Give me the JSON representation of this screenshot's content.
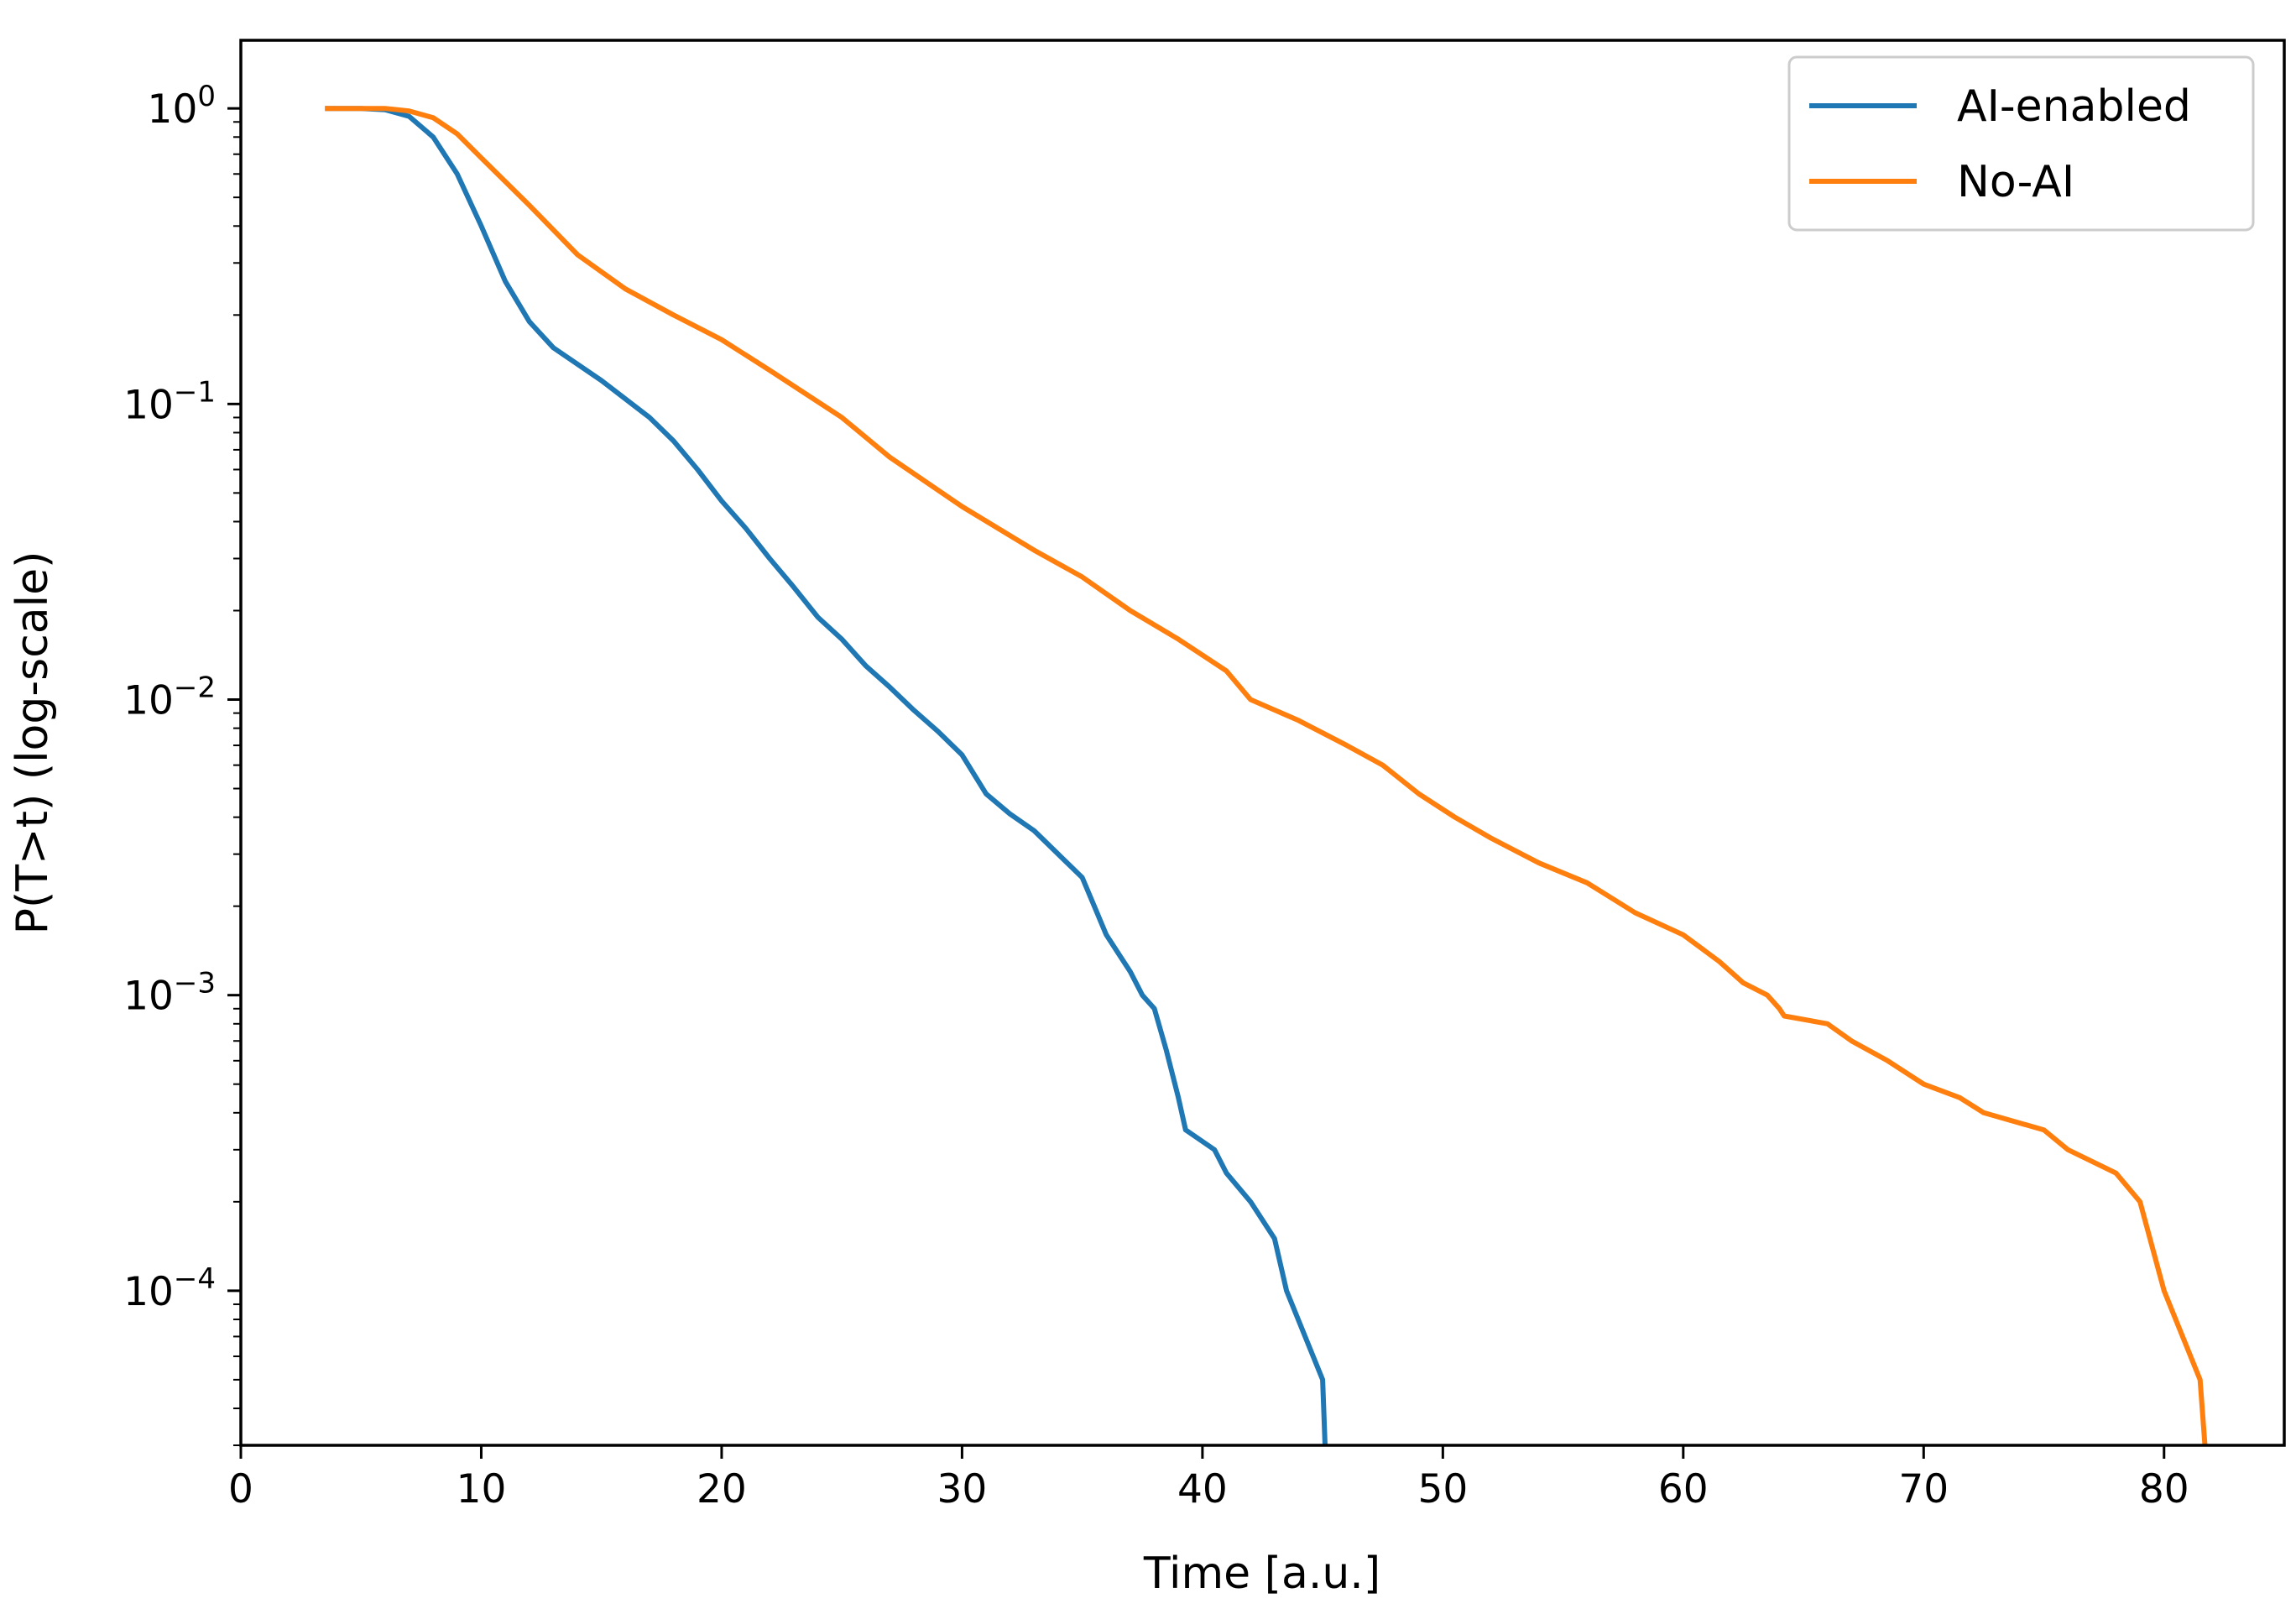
{
  "chart_data": {
    "type": "line",
    "title": "",
    "xlabel": "Time [a.u.]",
    "ylabel": "P(T>t) (log-scale)",
    "xlim": [
      0,
      85
    ],
    "ylim": [
      3e-05,
      1.7
    ],
    "yscale": "log",
    "grid": false,
    "legend_position": "top-right",
    "x_ticks": [
      0,
      10,
      20,
      30,
      40,
      50,
      60,
      70,
      80
    ],
    "x_tick_labels": [
      "0",
      "10",
      "20",
      "30",
      "40",
      "50",
      "60",
      "70",
      "80"
    ],
    "y_ticks": [
      1,
      0.1,
      0.01,
      0.001,
      0.0001
    ],
    "y_tick_labels": [
      {
        "base": "10",
        "exp": "0"
      },
      {
        "base": "10",
        "exp": "−1"
      },
      {
        "base": "10",
        "exp": "−2"
      },
      {
        "base": "10",
        "exp": "−3"
      },
      {
        "base": "10",
        "exp": "−4"
      }
    ],
    "series": [
      {
        "name": "AI-enabled",
        "color": "#1f77b4",
        "points": [
          [
            3.5,
            1.0
          ],
          [
            5,
            1.0
          ],
          [
            6,
            0.99
          ],
          [
            7,
            0.94
          ],
          [
            8,
            0.8
          ],
          [
            9,
            0.6
          ],
          [
            10,
            0.4
          ],
          [
            11,
            0.26
          ],
          [
            12,
            0.19
          ],
          [
            13,
            0.155
          ],
          [
            15,
            0.12
          ],
          [
            17,
            0.09
          ],
          [
            18,
            0.075
          ],
          [
            19,
            0.06
          ],
          [
            20,
            0.047
          ],
          [
            21,
            0.038
          ],
          [
            22,
            0.03
          ],
          [
            23,
            0.024
          ],
          [
            24,
            0.019
          ],
          [
            25,
            0.016
          ],
          [
            26,
            0.013
          ],
          [
            27,
            0.011
          ],
          [
            28,
            0.0092
          ],
          [
            29,
            0.0078
          ],
          [
            30,
            0.0065
          ],
          [
            31,
            0.0048
          ],
          [
            32,
            0.0041
          ],
          [
            33,
            0.0036
          ],
          [
            34,
            0.003
          ],
          [
            35,
            0.0025
          ],
          [
            35.5,
            0.002
          ],
          [
            36,
            0.0016
          ],
          [
            37,
            0.0012
          ],
          [
            37.5,
            0.001
          ],
          [
            38,
            0.0009
          ],
          [
            38.5,
            0.00065
          ],
          [
            39,
            0.00045
          ],
          [
            39.3,
            0.00035
          ],
          [
            40.5,
            0.0003
          ],
          [
            41,
            0.00025
          ],
          [
            42,
            0.0002
          ],
          [
            43,
            0.00015
          ],
          [
            43.5,
            0.0001
          ],
          [
            45,
            5e-05
          ],
          [
            45.1,
            3e-05
          ]
        ]
      },
      {
        "name": "No-AI",
        "color": "#ff7f0e",
        "points": [
          [
            3.5,
            1.0
          ],
          [
            6,
            1.0
          ],
          [
            7,
            0.98
          ],
          [
            8,
            0.93
          ],
          [
            9,
            0.82
          ],
          [
            10,
            0.68
          ],
          [
            12,
            0.47
          ],
          [
            14,
            0.32
          ],
          [
            16,
            0.245
          ],
          [
            18,
            0.2
          ],
          [
            20,
            0.165
          ],
          [
            22,
            0.13
          ],
          [
            25,
            0.09
          ],
          [
            27,
            0.066
          ],
          [
            30,
            0.045
          ],
          [
            33,
            0.032
          ],
          [
            35,
            0.026
          ],
          [
            37,
            0.02
          ],
          [
            39,
            0.016
          ],
          [
            41,
            0.0125
          ],
          [
            42,
            0.01
          ],
          [
            44,
            0.0085
          ],
          [
            46,
            0.007
          ],
          [
            47.5,
            0.006
          ],
          [
            49,
            0.0048
          ],
          [
            50.5,
            0.004
          ],
          [
            52,
            0.0034
          ],
          [
            54,
            0.0028
          ],
          [
            56,
            0.0024
          ],
          [
            58,
            0.0019
          ],
          [
            60,
            0.0016
          ],
          [
            61.5,
            0.0013
          ],
          [
            62.5,
            0.0011
          ],
          [
            63.5,
            0.001
          ],
          [
            64,
            0.0009
          ],
          [
            64.2,
            0.00085
          ],
          [
            66,
            0.0008
          ],
          [
            67,
            0.0007
          ],
          [
            68.5,
            0.0006
          ],
          [
            70,
            0.0005
          ],
          [
            71.5,
            0.00045
          ],
          [
            72.5,
            0.0004
          ],
          [
            75,
            0.00035
          ],
          [
            76,
            0.0003
          ],
          [
            78,
            0.00025
          ],
          [
            79,
            0.0002
          ],
          [
            80,
            0.0001
          ],
          [
            81.5,
            5e-05
          ],
          [
            81.7,
            3e-05
          ]
        ]
      }
    ]
  }
}
